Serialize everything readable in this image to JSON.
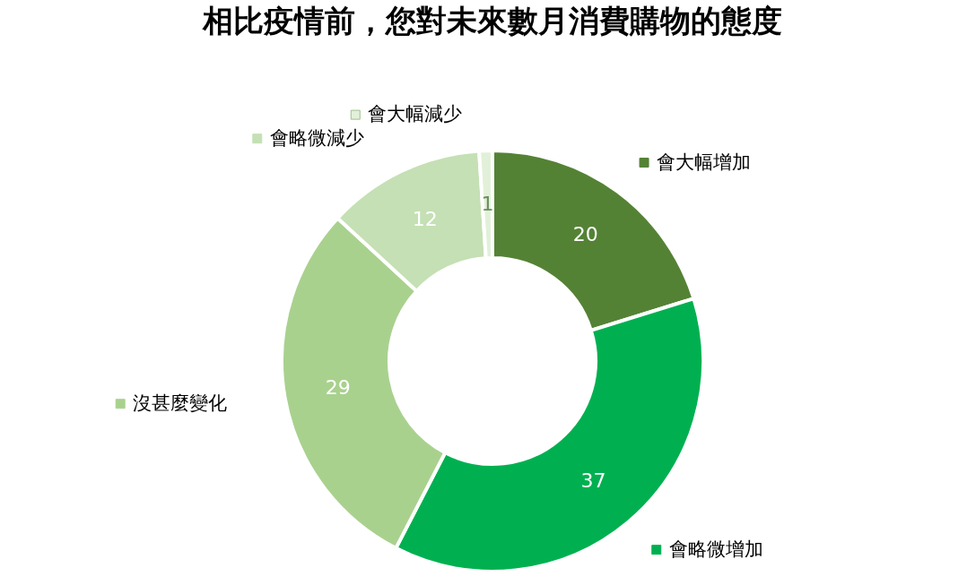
{
  "chart_data": {
    "type": "donut",
    "title": "相比疫情前，您對未來數月消費購物的態度",
    "categories": [
      "會大幅增加",
      "會略微增加",
      "沒甚麼變化",
      "會略微減少",
      "會大幅減少"
    ],
    "values": [
      20,
      37,
      29,
      12,
      1
    ],
    "colors": [
      "#548235",
      "#00b050",
      "#a9d18e",
      "#c5e0b4",
      "#e2f0d9"
    ],
    "data_labels": true,
    "legend": "top left"
  }
}
